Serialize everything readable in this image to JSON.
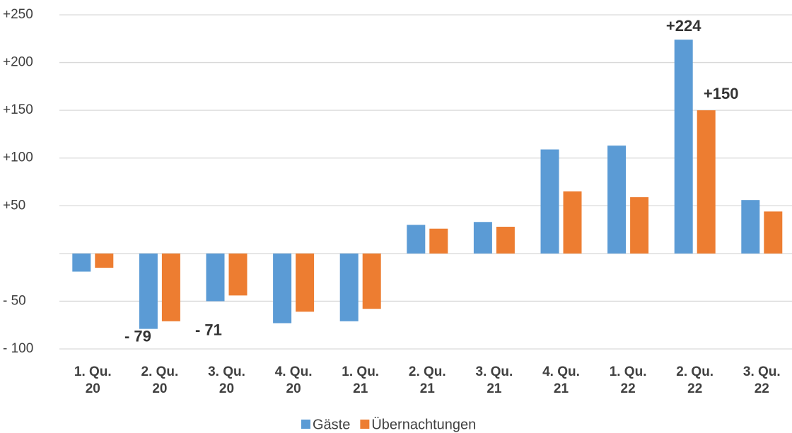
{
  "chart_data": {
    "type": "bar",
    "categories": [
      "1. Qu. 20",
      "2. Qu. 20",
      "3. Qu. 20",
      "4. Qu. 20",
      "1. Qu. 21",
      "2. Qu. 21",
      "3. Qu. 21",
      "4. Qu. 21",
      "1. Qu. 22",
      "2. Qu. 22",
      "3. Qu. 22"
    ],
    "series": [
      {
        "name": "Gäste",
        "color": "#5b9bd5",
        "values": [
          -19,
          -79,
          -50,
          -73,
          -71,
          30,
          33,
          109,
          113,
          224,
          56
        ],
        "value_labels": [
          null,
          "- 79",
          null,
          null,
          null,
          null,
          null,
          null,
          null,
          "+224",
          null
        ]
      },
      {
        "name": "Übernachtungen",
        "color": "#ed7d31",
        "values": [
          -15,
          -71,
          -44,
          -61,
          -58,
          26,
          28,
          65,
          59,
          150,
          44
        ],
        "value_labels": [
          null,
          "- 71",
          null,
          null,
          null,
          null,
          null,
          null,
          null,
          "+150",
          null
        ]
      }
    ],
    "ylim": [
      -100,
      250
    ],
    "yticks": [
      {
        "value": -100,
        "label": "- 100"
      },
      {
        "value": -50,
        "label": "- 50"
      },
      {
        "value": 50,
        "label": "+50"
      },
      {
        "value": 100,
        "label": "+100"
      },
      {
        "value": 150,
        "label": "+150"
      },
      {
        "value": 200,
        "label": "+200"
      },
      {
        "value": 250,
        "label": "+250"
      }
    ],
    "grid": true,
    "legend": "bottom"
  }
}
